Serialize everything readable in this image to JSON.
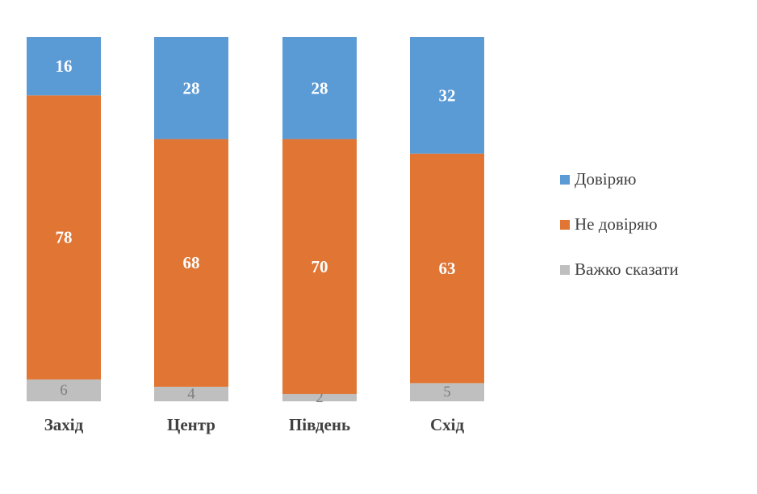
{
  "chart_data": {
    "type": "bar",
    "stacked": true,
    "percent_stacked": true,
    "categories": [
      "Захід",
      "Центр",
      "Південь",
      "Схід"
    ],
    "series": [
      {
        "name": "Важко сказати",
        "values": [
          6,
          4,
          2,
          5
        ],
        "color": "#BFBFBF",
        "label_color": "#7f7f7f"
      },
      {
        "name": "Не довіряю",
        "values": [
          78,
          68,
          70,
          63
        ],
        "color": "#E07534",
        "label_color": "#ffffff"
      },
      {
        "name": "Довіряю",
        "values": [
          16,
          28,
          28,
          32
        ],
        "color": "#5B9BD5",
        "label_color": "#ffffff"
      }
    ],
    "legend_order": [
      "Довіряю",
      "Не довіряю",
      "Важко сказати"
    ],
    "legend_position": "right",
    "grid": false,
    "title": "",
    "xlabel": "",
    "ylabel": ""
  }
}
